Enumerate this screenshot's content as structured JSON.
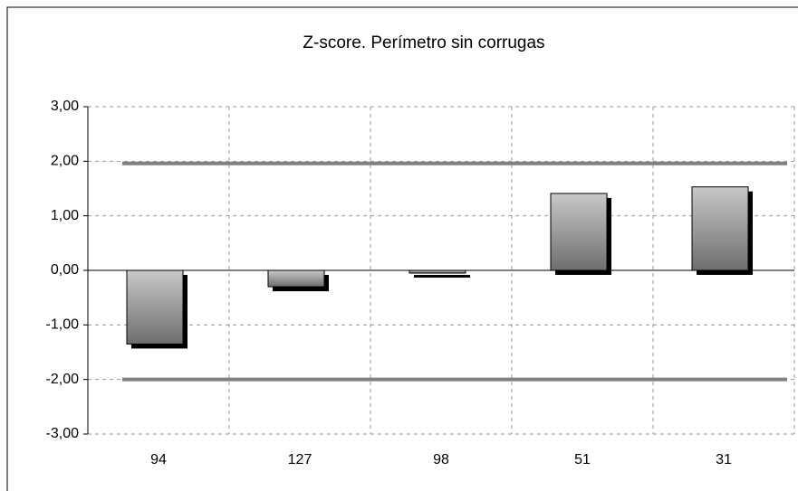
{
  "chart_data": {
    "type": "bar",
    "title": "Z-score. Perímetro sin corrugas",
    "categories": [
      "94",
      "127",
      "98",
      "51",
      "31"
    ],
    "values": [
      -1.35,
      -0.3,
      -0.05,
      1.41,
      1.53
    ],
    "reference_lines": [
      1.96,
      -2
    ],
    "reference_color": "#808080",
    "ylim": [
      -3,
      3
    ],
    "yticks": [
      {
        "value": -3,
        "label": "-3,00"
      },
      {
        "value": -2,
        "label": "-2,00"
      },
      {
        "value": -1,
        "label": "-1,00"
      },
      {
        "value": 0,
        "label": "0,00"
      },
      {
        "value": 1,
        "label": "1,00"
      },
      {
        "value": 2,
        "label": "2,00"
      },
      {
        "value": 3,
        "label": "3,00"
      }
    ],
    "grid": true
  }
}
